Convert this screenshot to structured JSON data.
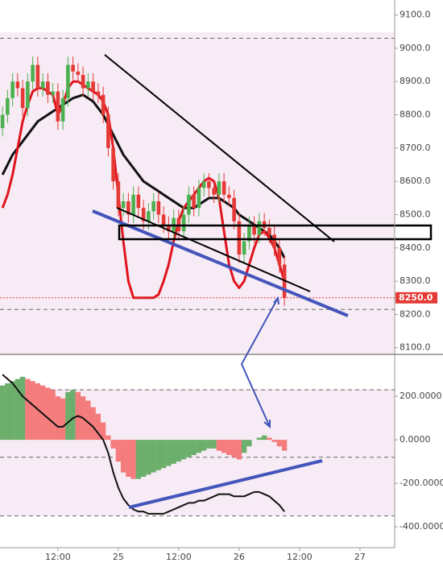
{
  "chart_data": {
    "type": "candlestick",
    "xlim": [
      0.5,
      78.9
    ],
    "xticks": [
      {
        "value": 12,
        "label": "12:00"
      },
      {
        "value": 24,
        "label": "25"
      },
      {
        "value": 36,
        "label": "12:00"
      },
      {
        "value": 48,
        "label": "26"
      },
      {
        "value": 60,
        "label": "12:00"
      },
      {
        "value": 72,
        "label": "27"
      }
    ],
    "x": [
      1,
      2,
      3,
      4,
      5,
      6,
      7,
      8,
      9,
      10,
      11,
      12,
      13,
      14,
      15,
      16,
      17,
      18,
      19,
      20,
      21,
      22,
      23,
      24,
      25,
      26,
      27,
      28,
      29,
      30,
      31,
      32,
      33,
      34,
      35,
      36,
      37,
      38,
      39,
      40,
      41,
      42,
      43,
      44,
      45,
      46,
      47,
      48,
      49,
      50,
      51,
      52,
      53,
      54,
      55,
      56,
      57
    ],
    "open": [
      8760,
      8800,
      8850,
      8900,
      8880,
      8820,
      8900,
      8950,
      8880,
      8900,
      8860,
      8870,
      8780,
      8850,
      8950,
      8930,
      8920,
      8880,
      8900,
      8870,
      8860,
      8800,
      8700,
      8600,
      8520,
      8540,
      8500,
      8560,
      8520,
      8480,
      8510,
      8540,
      8500,
      8470,
      8450,
      8490,
      8450,
      8500,
      8560,
      8520,
      8580,
      8600,
      8580,
      8560,
      8600,
      8560,
      8550,
      8480,
      8380,
      8420,
      8470,
      8440,
      8480,
      8460,
      8440,
      8400,
      8350
    ],
    "high": [
      8825,
      8875,
      8925,
      8925,
      8905,
      8925,
      8975,
      8975,
      8925,
      8925,
      8895,
      8895,
      8875,
      8975,
      8975,
      8955,
      8945,
      8925,
      8925,
      8895,
      8885,
      8825,
      8725,
      8625,
      8565,
      8565,
      8585,
      8585,
      8545,
      8535,
      8565,
      8565,
      8525,
      8495,
      8515,
      8515,
      8525,
      8585,
      8585,
      8605,
      8625,
      8625,
      8605,
      8625,
      8625,
      8585,
      8575,
      8505,
      8445,
      8495,
      8495,
      8505,
      8505,
      8485,
      8465,
      8425,
      8375
    ],
    "low": [
      8735,
      8775,
      8825,
      8855,
      8795,
      8795,
      8875,
      8855,
      8855,
      8835,
      8835,
      8755,
      8755,
      8825,
      8905,
      8895,
      8855,
      8855,
      8845,
      8835,
      8775,
      8675,
      8575,
      8495,
      8495,
      8475,
      8475,
      8495,
      8455,
      8455,
      8485,
      8475,
      8445,
      8425,
      8425,
      8425,
      8425,
      8475,
      8495,
      8495,
      8555,
      8555,
      8535,
      8535,
      8535,
      8525,
      8455,
      8355,
      8355,
      8395,
      8415,
      8415,
      8435,
      8415,
      8375,
      8325,
      8225
    ],
    "close": [
      8800,
      8850,
      8900,
      8880,
      8820,
      8900,
      8950,
      8880,
      8900,
      8860,
      8870,
      8780,
      8850,
      8950,
      8930,
      8920,
      8880,
      8900,
      8870,
      8860,
      8800,
      8700,
      8600,
      8520,
      8540,
      8500,
      8560,
      8520,
      8480,
      8510,
      8540,
      8500,
      8470,
      8450,
      8490,
      8450,
      8500,
      8560,
      8520,
      8580,
      8600,
      8580,
      8560,
      8600,
      8560,
      8550,
      8480,
      8380,
      8420,
      8470,
      8440,
      8480,
      8460,
      8440,
      8400,
      8350,
      8250
    ],
    "up_color": "#4caf50",
    "down_color": "#e53935",
    "overlays": [
      {
        "color": "#111111",
        "values": [
          8620,
          8650,
          8680,
          8700,
          8720,
          8740,
          8760,
          8780,
          8790,
          8800,
          8810,
          8820,
          8830,
          8840,
          8850,
          8855,
          8860,
          8850,
          8840,
          8820,
          8800,
          8770,
          8740,
          8710,
          8680,
          8660,
          8640,
          8620,
          8600,
          8590,
          8580,
          8570,
          8560,
          8550,
          8540,
          8530,
          8520,
          8520,
          8520,
          8530,
          8540,
          8550,
          8550,
          8550,
          8540,
          8530,
          8520,
          8500,
          8490,
          8480,
          8470,
          8460,
          8450,
          8440,
          8420,
          8400,
          8370
        ]
      },
      {
        "color": "#e0141e",
        "values": [
          8520,
          8560,
          8620,
          8700,
          8780,
          8830,
          8870,
          8880,
          8880,
          8870,
          8860,
          8800,
          8830,
          8880,
          8900,
          8900,
          8890,
          8880,
          8870,
          8860,
          8840,
          8800,
          8700,
          8560,
          8420,
          8300,
          8250,
          8250,
          8250,
          8250,
          8250,
          8260,
          8300,
          8350,
          8420,
          8480,
          8520,
          8540,
          8560,
          8580,
          8600,
          8610,
          8600,
          8550,
          8450,
          8350,
          8300,
          8280,
          8300,
          8350,
          8400,
          8440,
          8450,
          8430,
          8400,
          8350,
          8300
        ]
      }
    ],
    "levels": [
      9030,
      8215
    ],
    "last_price": {
      "value": 8250,
      "label": "8250.0"
    },
    "ylim": [
      8080,
      9145
    ],
    "yticks": [
      {
        "value": 8100,
        "label": "8100.0"
      },
      {
        "value": 8200,
        "label": "8200.0"
      },
      {
        "value": 8300,
        "label": "8300.0"
      },
      {
        "value": 8400,
        "label": "8400.0"
      },
      {
        "value": 8500,
        "label": "8500.0"
      },
      {
        "value": 8600,
        "label": "8600.0"
      },
      {
        "value": 8700,
        "label": "8700.0"
      },
      {
        "value": 8800,
        "label": "8800.0"
      },
      {
        "value": 8900,
        "label": "8900.0"
      },
      {
        "value": 9000,
        "label": "9000.0"
      },
      {
        "value": 9100,
        "label": "9100.0"
      }
    ],
    "oscillator": {
      "ylim": [
        -496,
        393
      ],
      "yticks": [
        {
          "value": 200,
          "label": "200.0000"
        },
        {
          "value": 0,
          "label": "0.0000"
        },
        {
          "value": -200,
          "label": "-200.0000"
        },
        {
          "value": -400,
          "label": "-400.0000"
        }
      ],
      "histogram": [
        250,
        260,
        270,
        280,
        290,
        280,
        270,
        260,
        250,
        240,
        230,
        200,
        190,
        220,
        230,
        220,
        200,
        180,
        150,
        120,
        80,
        20,
        -40,
        -100,
        -150,
        -170,
        -180,
        -180,
        -170,
        -160,
        -150,
        -140,
        -130,
        -120,
        -110,
        -100,
        -90,
        -80,
        -70,
        -60,
        -50,
        -40,
        -40,
        -50,
        -60,
        -70,
        -80,
        -90,
        -60,
        -30,
        0,
        10,
        20,
        10,
        -10,
        -30,
        -50
      ],
      "up_color": "#6cae6c",
      "down_color": "#f47c7c",
      "line": {
        "color": "#111111",
        "values": [
          300,
          280,
          260,
          230,
          200,
          180,
          160,
          140,
          120,
          100,
          80,
          60,
          60,
          80,
          100,
          110,
          100,
          80,
          60,
          30,
          0,
          -60,
          -150,
          -220,
          -270,
          -300,
          -320,
          -330,
          -330,
          -340,
          -340,
          -340,
          -340,
          -330,
          -320,
          -310,
          -300,
          -290,
          -290,
          -280,
          -280,
          -270,
          -260,
          -250,
          -250,
          -250,
          -260,
          -260,
          -260,
          -250,
          -240,
          -240,
          -250,
          -260,
          -280,
          -300,
          -330
        ]
      },
      "levels": [
        230,
        -80,
        -350
      ]
    }
  }
}
